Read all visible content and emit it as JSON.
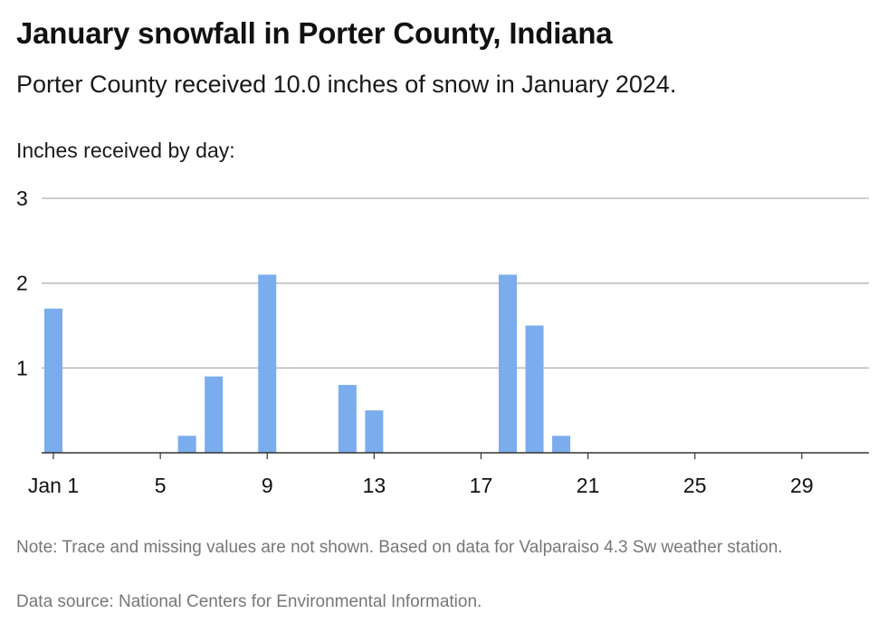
{
  "title": "January snowfall in Porter County, Indiana",
  "subtitle": "Porter County received 10.0 inches of snow in January 2024.",
  "note": "Note: Trace and missing values are not shown. Based on data for Valparaiso 4.3 Sw weather station.",
  "source": "Data source: National Centers for Environmental Information.",
  "colors": {
    "bar": "#7aacee",
    "grid": "#b3b3b3",
    "axis": "#333333"
  },
  "chart_data": {
    "type": "bar",
    "ylabel": "Inches received by day:",
    "xlabel": "",
    "x": [
      1,
      2,
      3,
      4,
      5,
      6,
      7,
      8,
      9,
      10,
      11,
      12,
      13,
      14,
      15,
      16,
      17,
      18,
      19,
      20,
      21,
      22,
      23,
      24,
      25,
      26,
      27,
      28,
      29,
      30,
      31
    ],
    "values": [
      1.7,
      0,
      0,
      0,
      0,
      0.2,
      0.9,
      0,
      2.1,
      0,
      0,
      0.8,
      0.5,
      0,
      0,
      0,
      0,
      2.1,
      1.5,
      0.2,
      0,
      0,
      0,
      0,
      0,
      0,
      0,
      0,
      0,
      0,
      0
    ],
    "ylim": [
      0,
      3
    ],
    "yticks": [
      1,
      2,
      3
    ],
    "xticks": [
      {
        "day": 1,
        "label": "Jan 1"
      },
      {
        "day": 5,
        "label": "5"
      },
      {
        "day": 9,
        "label": "9"
      },
      {
        "day": 13,
        "label": "13"
      },
      {
        "day": 17,
        "label": "17"
      },
      {
        "day": 21,
        "label": "21"
      },
      {
        "day": 25,
        "label": "25"
      },
      {
        "day": 29,
        "label": "29"
      }
    ],
    "grid": true
  }
}
